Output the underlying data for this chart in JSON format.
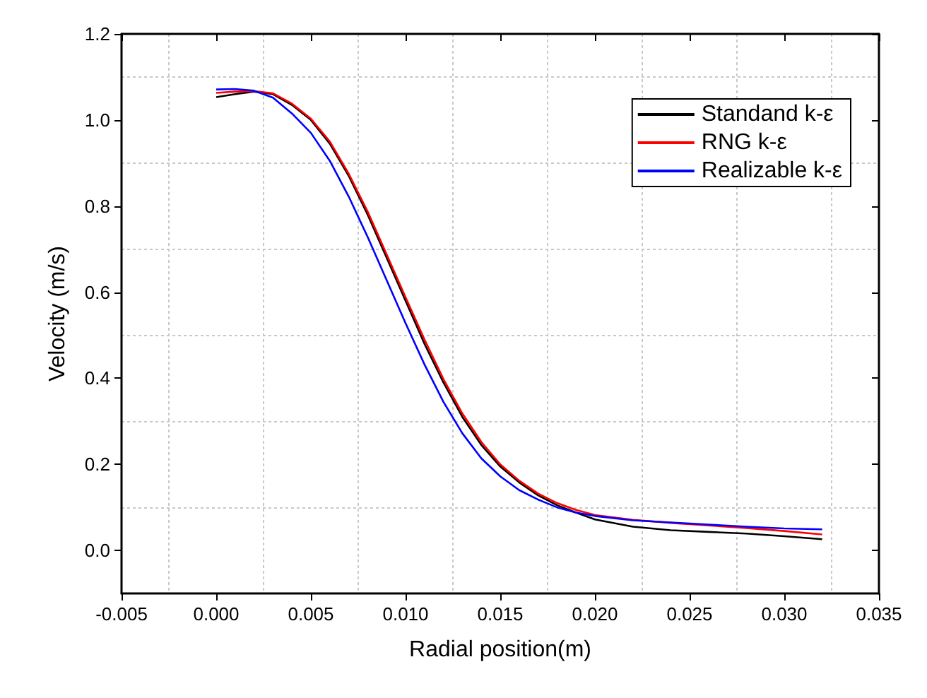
{
  "chart_data": {
    "type": "line",
    "xlabel": "Radial position(m)",
    "ylabel": "Velocity (m/s)",
    "x": [
      0,
      0.001,
      0.002,
      0.003,
      0.004,
      0.005,
      0.006,
      0.007,
      0.008,
      0.009,
      0.01,
      0.011,
      0.012,
      0.013,
      0.014,
      0.015,
      0.016,
      0.017,
      0.018,
      0.019,
      0.02,
      0.022,
      0.024,
      0.026,
      0.028,
      0.03,
      0.032
    ],
    "series": [
      {
        "name": "Standand k-ε",
        "color": "#000000",
        "values": [
          1.053,
          1.06,
          1.066,
          1.06,
          1.035,
          1.0,
          0.945,
          0.87,
          0.78,
          0.68,
          0.58,
          0.48,
          0.39,
          0.31,
          0.245,
          0.195,
          0.158,
          0.128,
          0.105,
          0.088,
          0.072,
          0.055,
          0.047,
          0.043,
          0.039,
          0.033,
          0.026
        ]
      },
      {
        "name": "RNG k-ε",
        "color": "#ff0000",
        "values": [
          1.063,
          1.066,
          1.067,
          1.062,
          1.038,
          1.003,
          0.95,
          0.875,
          0.787,
          0.688,
          0.588,
          0.49,
          0.398,
          0.318,
          0.252,
          0.2,
          0.162,
          0.132,
          0.11,
          0.094,
          0.082,
          0.071,
          0.064,
          0.058,
          0.052,
          0.045,
          0.037
        ]
      },
      {
        "name": "Realizable k-ε",
        "color": "#0000ff",
        "values": [
          1.071,
          1.072,
          1.068,
          1.052,
          1.015,
          0.97,
          0.905,
          0.822,
          0.728,
          0.628,
          0.528,
          0.432,
          0.345,
          0.272,
          0.214,
          0.172,
          0.14,
          0.118,
          0.1,
          0.088,
          0.08,
          0.07,
          0.065,
          0.06,
          0.055,
          0.051,
          0.049
        ]
      }
    ],
    "xlim": [
      -0.005,
      0.035
    ],
    "xticks": [
      {
        "value": -0.005,
        "label": "-0.005"
      },
      {
        "value": 0,
        "label": "0.000"
      },
      {
        "value": 0.005,
        "label": "0.005"
      },
      {
        "value": 0.01,
        "label": "0.010"
      },
      {
        "value": 0.015,
        "label": "0.015"
      },
      {
        "value": 0.02,
        "label": "0.020"
      },
      {
        "value": 0.025,
        "label": "0.025"
      },
      {
        "value": 0.03,
        "label": "0.030"
      },
      {
        "value": 0.035,
        "label": "0.035"
      }
    ],
    "ylim": [
      -0.1,
      1.2
    ],
    "yticks": [
      {
        "value": 0,
        "label": "0.0"
      },
      {
        "value": 0.2,
        "label": "0.2"
      },
      {
        "value": 0.4,
        "label": "0.4"
      },
      {
        "value": 0.6,
        "label": "0.6"
      },
      {
        "value": 0.8,
        "label": "0.8"
      },
      {
        "value": 1.0,
        "label": "1.0"
      },
      {
        "value": 1.2,
        "label": "1.2"
      }
    ],
    "grid": true,
    "legend": "top right",
    "marker": "none",
    "line_style": "solid"
  }
}
